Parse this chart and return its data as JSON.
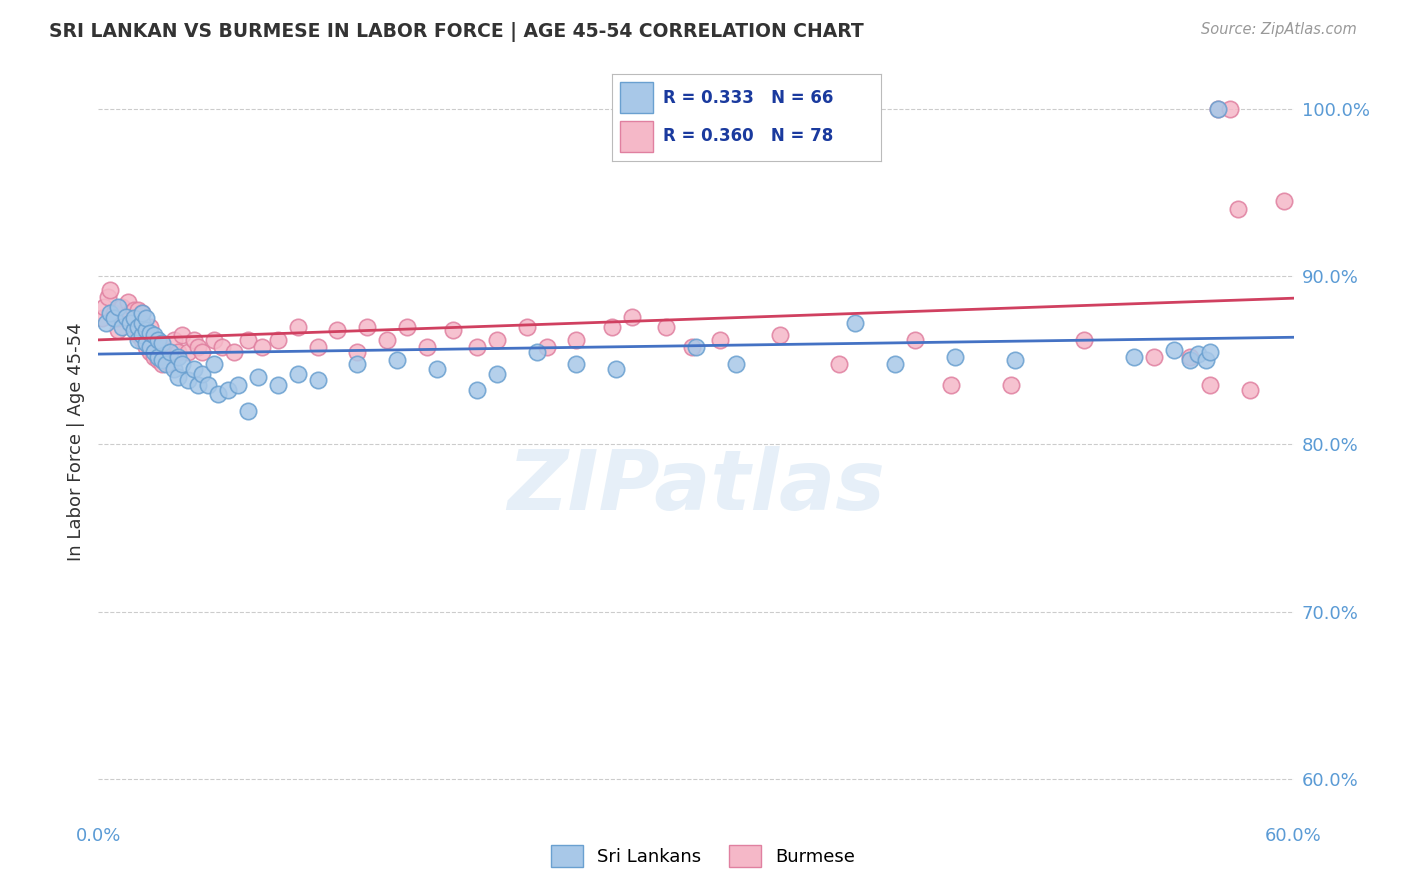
{
  "title": "SRI LANKAN VS BURMESE IN LABOR FORCE | AGE 45-54 CORRELATION CHART",
  "source": "Source: ZipAtlas.com",
  "ylabel": "In Labor Force | Age 45-54",
  "xlim": [
    0.0,
    0.6
  ],
  "ylim": [
    0.578,
    1.025
  ],
  "xticks": [
    0.0,
    0.1,
    0.2,
    0.3,
    0.4,
    0.5,
    0.6
  ],
  "xtick_labels": [
    "0.0%",
    "",
    "",
    "",
    "",
    "",
    "60.0%"
  ],
  "yticks_right": [
    0.6,
    0.7,
    0.8,
    0.9,
    1.0
  ],
  "ytick_labels_right": [
    "60.0%",
    "70.0%",
    "80.0%",
    "90.0%",
    "100.0%"
  ],
  "sri_fill": "#a8c8e8",
  "sri_edge": "#6aa0d0",
  "bur_fill": "#f5b8c8",
  "bur_edge": "#e080a0",
  "trend_sri": "#4472c4",
  "trend_bur": "#d04060",
  "legend_text_color": "#1a3a9e",
  "watermark": "ZIPatlas",
  "marker_size": 140,
  "sri_x": [
    0.004,
    0.006,
    0.008,
    0.01,
    0.012,
    0.014,
    0.016,
    0.018,
    0.018,
    0.02,
    0.02,
    0.022,
    0.022,
    0.022,
    0.024,
    0.024,
    0.024,
    0.026,
    0.026,
    0.028,
    0.028,
    0.03,
    0.03,
    0.032,
    0.032,
    0.034,
    0.036,
    0.038,
    0.04,
    0.04,
    0.042,
    0.045,
    0.048,
    0.05,
    0.052,
    0.055,
    0.058,
    0.06,
    0.065,
    0.07,
    0.075,
    0.08,
    0.09,
    0.1,
    0.11,
    0.13,
    0.15,
    0.17,
    0.19,
    0.2,
    0.22,
    0.24,
    0.26,
    0.3,
    0.32,
    0.38,
    0.4,
    0.43,
    0.46,
    0.52,
    0.54,
    0.548,
    0.552,
    0.556,
    0.558,
    0.562
  ],
  "sri_y": [
    0.872,
    0.878,
    0.875,
    0.882,
    0.87,
    0.876,
    0.872,
    0.868,
    0.875,
    0.862,
    0.87,
    0.865,
    0.872,
    0.878,
    0.86,
    0.868,
    0.875,
    0.858,
    0.866,
    0.855,
    0.865,
    0.852,
    0.862,
    0.85,
    0.86,
    0.848,
    0.855,
    0.845,
    0.84,
    0.852,
    0.848,
    0.838,
    0.845,
    0.835,
    0.842,
    0.835,
    0.848,
    0.83,
    0.832,
    0.835,
    0.82,
    0.84,
    0.835,
    0.842,
    0.838,
    0.848,
    0.85,
    0.845,
    0.832,
    0.842,
    0.855,
    0.848,
    0.845,
    0.858,
    0.848,
    0.872,
    0.848,
    0.852,
    0.85,
    0.852,
    0.856,
    0.85,
    0.854,
    0.85,
    0.855,
    1.0
  ],
  "bur_x": [
    0.002,
    0.003,
    0.005,
    0.006,
    0.008,
    0.01,
    0.01,
    0.012,
    0.014,
    0.015,
    0.016,
    0.018,
    0.018,
    0.02,
    0.02,
    0.02,
    0.022,
    0.022,
    0.022,
    0.024,
    0.024,
    0.026,
    0.026,
    0.026,
    0.028,
    0.028,
    0.03,
    0.03,
    0.032,
    0.032,
    0.034,
    0.036,
    0.038,
    0.04,
    0.042,
    0.045,
    0.048,
    0.05,
    0.052,
    0.058,
    0.062,
    0.068,
    0.075,
    0.082,
    0.09,
    0.1,
    0.11,
    0.12,
    0.13,
    0.135,
    0.145,
    0.155,
    0.165,
    0.178,
    0.19,
    0.2,
    0.215,
    0.225,
    0.24,
    0.258,
    0.268,
    0.285,
    0.298,
    0.312,
    0.342,
    0.372,
    0.41,
    0.428,
    0.458,
    0.495,
    0.53,
    0.548,
    0.558,
    0.562,
    0.568,
    0.572,
    0.578,
    0.595
  ],
  "bur_y": [
    0.875,
    0.882,
    0.888,
    0.892,
    0.878,
    0.868,
    0.875,
    0.882,
    0.875,
    0.885,
    0.878,
    0.872,
    0.88,
    0.865,
    0.872,
    0.88,
    0.862,
    0.87,
    0.878,
    0.858,
    0.866,
    0.855,
    0.862,
    0.87,
    0.852,
    0.86,
    0.85,
    0.858,
    0.848,
    0.858,
    0.852,
    0.848,
    0.862,
    0.855,
    0.865,
    0.855,
    0.862,
    0.858,
    0.855,
    0.862,
    0.858,
    0.855,
    0.862,
    0.858,
    0.862,
    0.87,
    0.858,
    0.868,
    0.855,
    0.87,
    0.862,
    0.87,
    0.858,
    0.868,
    0.858,
    0.862,
    0.87,
    0.858,
    0.862,
    0.87,
    0.876,
    0.87,
    0.858,
    0.862,
    0.865,
    0.848,
    0.862,
    0.835,
    0.835,
    0.862,
    0.852,
    0.852,
    0.835,
    1.0,
    1.0,
    0.94,
    0.832,
    0.945
  ]
}
